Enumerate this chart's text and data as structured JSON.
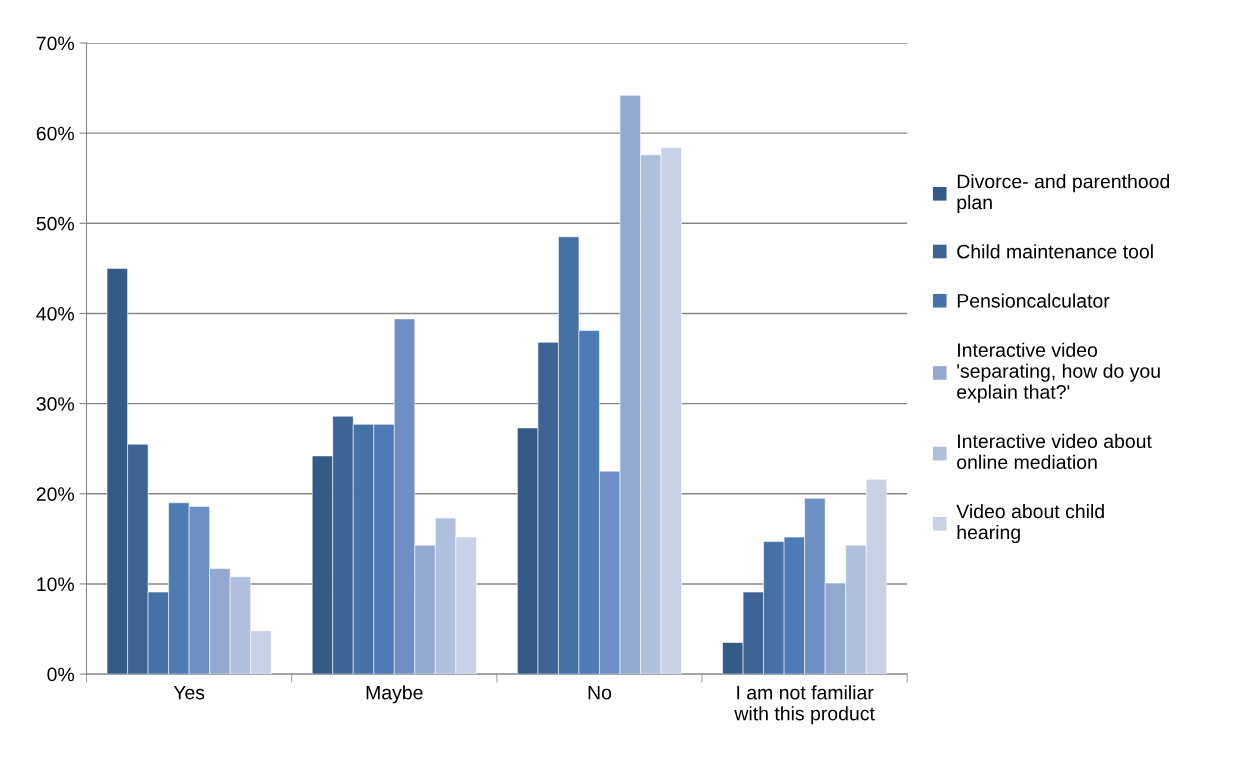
{
  "chart_data": {
    "type": "bar",
    "categories": [
      "Yes",
      "Maybe",
      "No",
      "I am not familiar with this product"
    ],
    "series": [
      {
        "name": "Divorce- and parenthood plan",
        "color": "#345a86",
        "values": [
          45.0,
          24.2,
          27.3,
          3.5
        ]
      },
      {
        "name": "Child maintenance tool",
        "color": "#3e6496",
        "values": [
          25.5,
          28.6,
          36.8,
          9.1
        ]
      },
      {
        "name": "Pensioncalculator",
        "color": "#4571a6",
        "values": [
          9.1,
          27.7,
          48.5,
          14.7
        ]
      },
      {
        "color": "#4c7bb5",
        "values": [
          19.0,
          27.7,
          38.1,
          15.2
        ]
      },
      {
        "color": "#6c8fc4",
        "values": [
          18.6,
          39.4,
          22.5,
          19.5
        ]
      },
      {
        "name": "Interactive video 'separating, how do you explain that?'",
        "color": "#94a9d0",
        "values": [
          11.7,
          14.3,
          64.2,
          10.1
        ]
      },
      {
        "name": "Interactive video about online mediation",
        "color": "#b0bfdc",
        "values": [
          10.8,
          17.3,
          57.6,
          14.3
        ]
      },
      {
        "name": "Video about child hearing",
        "color": "#c8d1e5",
        "values": [
          4.8,
          15.2,
          58.4,
          21.6
        ]
      }
    ],
    "ylim": [
      0,
      70
    ],
    "yticks": [
      {
        "value": 0,
        "label": "0%"
      },
      {
        "value": 10,
        "label": "10%"
      },
      {
        "value": 20,
        "label": "20%"
      },
      {
        "value": 30,
        "label": "30%"
      },
      {
        "value": 40,
        "label": "40%"
      },
      {
        "value": 50,
        "label": "50%"
      },
      {
        "value": 60,
        "label": "60%"
      },
      {
        "value": 70,
        "label": "70%"
      }
    ],
    "grid": "y",
    "legend": "right"
  }
}
